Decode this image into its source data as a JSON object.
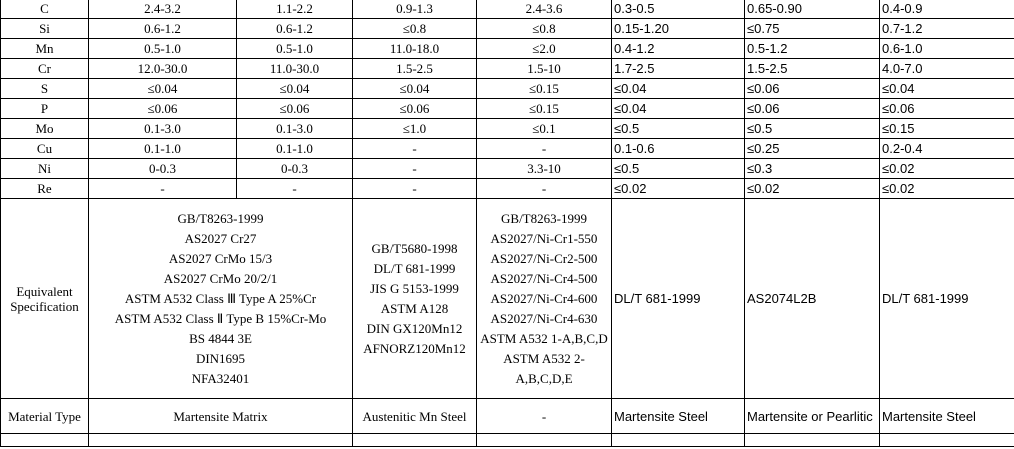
{
  "table": {
    "rows": [
      [
        "C",
        "2.4-3.2",
        "1.1-2.2",
        "0.9-1.3",
        "2.4-3.6",
        "0.3-0.5",
        "0.65-0.90",
        "0.4-0.9"
      ],
      [
        "Si",
        "0.6-1.2",
        "0.6-1.2",
        "≤0.8",
        "≤0.8",
        "0.15-1.20",
        "≤0.75",
        "0.7-1.2"
      ],
      [
        "Mn",
        "0.5-1.0",
        "0.5-1.0",
        "11.0-18.0",
        "≤2.0",
        "0.4-1.2",
        "0.5-1.2",
        "0.6-1.0"
      ],
      [
        "Cr",
        "12.0-30.0",
        "11.0-30.0",
        "1.5-2.5",
        "1.5-10",
        "1.7-2.5",
        "1.5-2.5",
        "4.0-7.0"
      ],
      [
        "S",
        "≤0.04",
        "≤0.04",
        "≤0.04",
        "≤0.15",
        "≤0.04",
        "≤0.06",
        "≤0.04"
      ],
      [
        "P",
        "≤0.06",
        "≤0.06",
        "≤0.06",
        "≤0.15",
        "≤0.04",
        "≤0.06",
        "≤0.06"
      ],
      [
        "Mo",
        "0.1-3.0",
        "0.1-3.0",
        "≤1.0",
        "≤0.1",
        "≤0.5",
        "≤0.5",
        "≤0.15"
      ],
      [
        "Cu",
        "0.1-1.0",
        "0.1-1.0",
        "-",
        "-",
        "0.1-0.6",
        "≤0.25",
        "0.2-0.4"
      ],
      [
        "Ni",
        "0-0.3",
        "0-0.3",
        "-",
        "3.3-10",
        "≤0.5",
        "≤0.3",
        "≤0.02"
      ],
      [
        "Re",
        "-",
        "-",
        "-",
        "-",
        "≤0.02",
        "≤0.02",
        "≤0.02"
      ]
    ],
    "equivalent_specification": {
      "label": "Equivalent Specification",
      "cells": [
        [
          "GB/T8263-1999",
          "AS2027 Cr27",
          "AS2027 CrMo 15/3",
          "AS2027 CrMo 20/2/1",
          "ASTM A532 Class Ⅲ Type A 25%Cr",
          "ASTM A532 Class Ⅱ Type B 15%Cr-Mo",
          "BS 4844 3E",
          "DIN1695",
          "NFA32401"
        ],
        [
          "GB/T5680-1998",
          "DL/T 681-1999",
          "JIS G 5153-1999",
          "ASTM A128",
          "DIN GX120Mn12",
          "AFNORZ120Mn12"
        ],
        [
          "GB/T8263-1999",
          "AS2027/Ni-Cr1-550",
          "AS2027/Ni-Cr2-500",
          "AS2027/Ni-Cr4-500",
          "AS2027/Ni-Cr4-600",
          "AS2027/Ni-Cr4-630",
          "ASTM A532 1-A,B,C,D",
          "ASTM A532 2-A,B,C,D,E"
        ],
        "DL/T 681-1999",
        "AS2074L2B",
        "DL/T 681-1999"
      ]
    },
    "material_type": {
      "label": "Material Type",
      "cells": [
        "Martensite Matrix",
        "Austenitic Mn Steel",
        "-",
        "Martensite Steel",
        "Martensite or Pearlitic",
        "Martensite Steel"
      ]
    }
  }
}
